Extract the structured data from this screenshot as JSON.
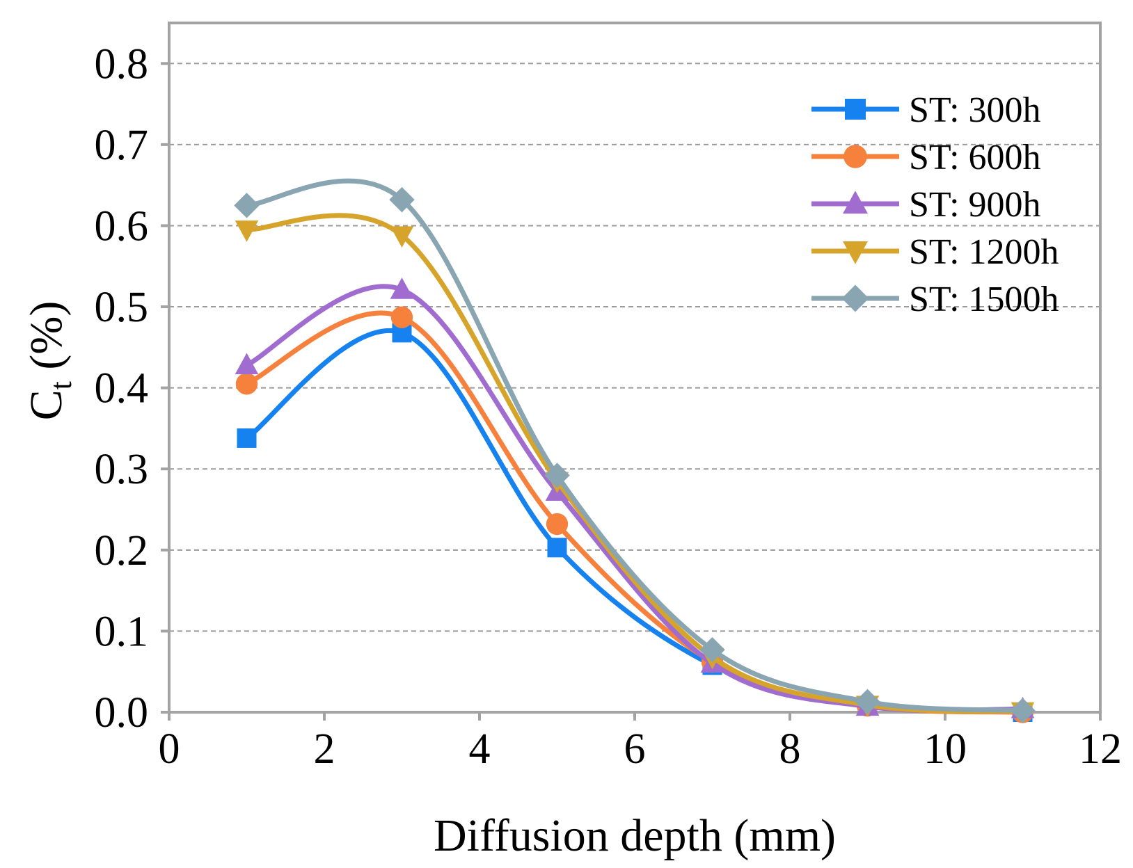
{
  "chart_data": {
    "type": "line",
    "title": "",
    "xlabel": "Diffusion depth (mm)",
    "ylabel_main": "C",
    "ylabel_subscript": "t",
    "ylabel_suffix": " (%)",
    "xlim": [
      0,
      12
    ],
    "ylim": [
      0,
      0.85
    ],
    "xticks": [
      0,
      2,
      4,
      6,
      8,
      10,
      12
    ],
    "xtick_labels": [
      "0",
      "2",
      "4",
      "6",
      "8",
      "10",
      "12"
    ],
    "yticks": [
      0,
      0.1,
      0.2,
      0.3,
      0.4,
      0.5,
      0.6,
      0.7,
      0.8
    ],
    "ytick_labels": [
      "0.0",
      "0.1",
      "0.2",
      "0.3",
      "0.4",
      "0.5",
      "0.6",
      "0.7",
      "0.8"
    ],
    "grid": "horizontal dashed",
    "legend_position": "top-right",
    "x": [
      1,
      3,
      5,
      7,
      9,
      11
    ],
    "series": [
      {
        "name": "ST: 300h",
        "marker": "square",
        "color": "#1582f0",
        "values": [
          0.338,
          0.468,
          0.203,
          0.058,
          0.008,
          0.0
        ]
      },
      {
        "name": "ST: 600h",
        "marker": "circle",
        "color": "#f5813d",
        "values": [
          0.405,
          0.487,
          0.232,
          0.062,
          0.008,
          0.0
        ]
      },
      {
        "name": "ST: 900h",
        "marker": "triangle-up",
        "color": "#a06cd0",
        "values": [
          0.428,
          0.521,
          0.272,
          0.06,
          0.007,
          0.004
        ]
      },
      {
        "name": "ST: 1200h",
        "marker": "triangle-down",
        "color": "#d6a42a",
        "values": [
          0.595,
          0.588,
          0.285,
          0.068,
          0.009,
          0.001
        ]
      },
      {
        "name": "ST: 1500h",
        "marker": "diamond",
        "color": "#89a5b2",
        "values": [
          0.625,
          0.632,
          0.292,
          0.077,
          0.013,
          0.002
        ]
      }
    ]
  }
}
